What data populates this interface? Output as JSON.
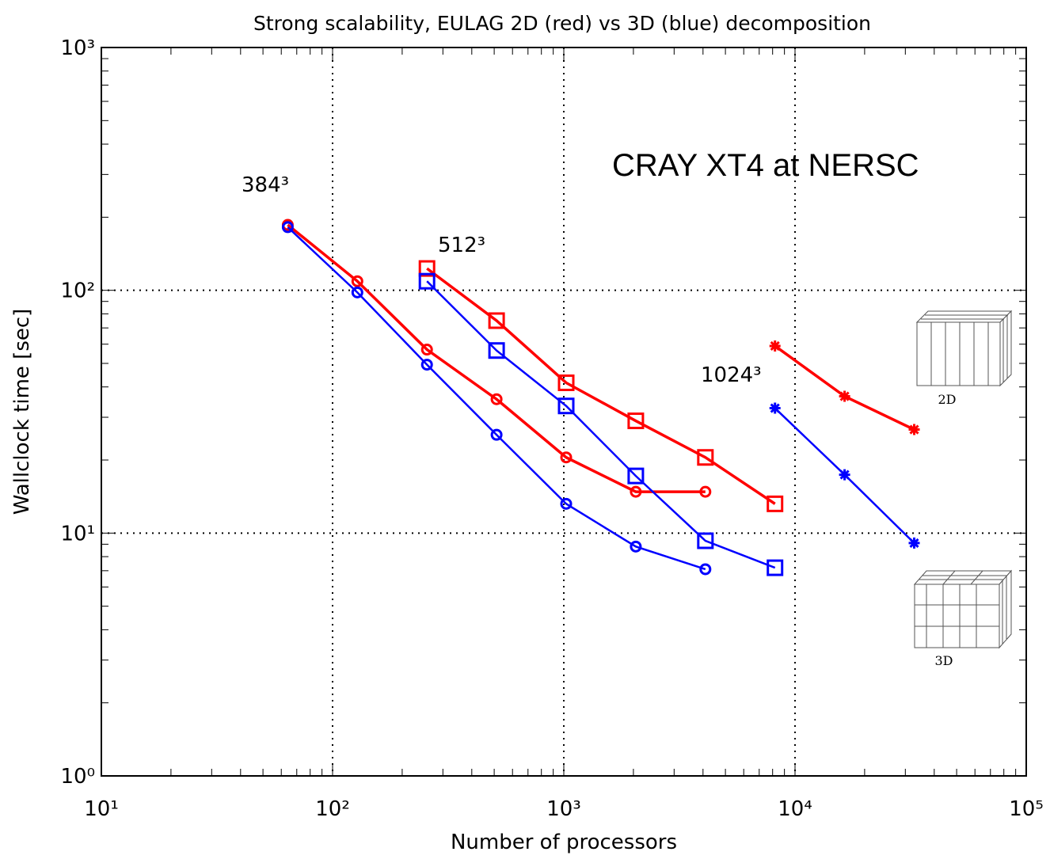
{
  "chart_data": {
    "type": "line",
    "title": "Strong scalability, EULAG 2D (red) vs 3D (blue) decomposition",
    "x_label": "Number of processors",
    "y_label": "Wallclock time [sec]",
    "x_log": true,
    "y_log": true,
    "grid": true,
    "xlim": [
      10,
      100000
    ],
    "ylim": [
      1,
      1000
    ],
    "xticks": [
      {
        "value": 10,
        "label": "10¹"
      },
      {
        "value": 100,
        "label": "10²"
      },
      {
        "value": 1000,
        "label": "10³"
      },
      {
        "value": 10000,
        "label": "10⁴"
      },
      {
        "value": 100000,
        "label": "10⁵"
      }
    ],
    "yticks": [
      {
        "value": 1,
        "label": "10⁰"
      },
      {
        "value": 10,
        "label": "10¹"
      },
      {
        "value": 100,
        "label": "10²"
      },
      {
        "value": 1000,
        "label": "10³"
      }
    ],
    "series": [
      {
        "color": "#ff0000",
        "marker": "circle",
        "x": [
          64,
          128,
          256,
          512,
          1024,
          2048,
          4096
        ],
        "values": [
          186,
          109,
          57,
          35.6,
          20.5,
          14.8,
          14.8
        ]
      },
      {
        "color": "#0000ff",
        "marker": "circle",
        "x": [
          64,
          128,
          256,
          512,
          1024,
          2048,
          4096
        ],
        "values": [
          182,
          98,
          49.4,
          25.4,
          13.2,
          8.8,
          7.1
        ]
      },
      {
        "color": "#ff0000",
        "marker": "square",
        "x": [
          256,
          512,
          1024,
          2048,
          4096,
          8192
        ],
        "values": [
          123,
          75,
          41.6,
          29,
          20.5,
          13.2
        ]
      },
      {
        "color": "#0000ff",
        "marker": "square",
        "x": [
          256,
          512,
          1024,
          2048,
          4096,
          8192
        ],
        "values": [
          109,
          56.5,
          33.4,
          17.2,
          9.3,
          7.2
        ]
      },
      {
        "color": "#ff0000",
        "marker": "star",
        "x": [
          8192,
          16384,
          32768
        ],
        "values": [
          59,
          36.6,
          26.7
        ]
      },
      {
        "color": "#0000ff",
        "marker": "star",
        "x": [
          8192,
          16384,
          32768
        ],
        "values": [
          32.7,
          17.4,
          9.1
        ]
      }
    ],
    "annotations": [
      "384³",
      "512³",
      "1024³",
      "CRAY XT4 at NERSC",
      "2D",
      "3D"
    ]
  }
}
